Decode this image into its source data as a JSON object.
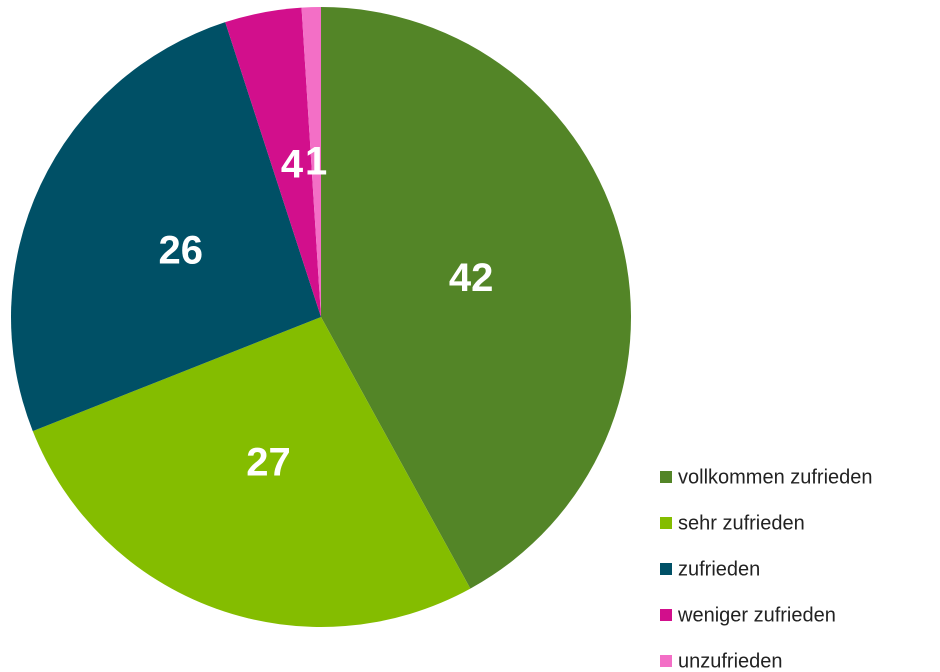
{
  "chart_data": {
    "type": "pie",
    "categories": [
      "vollkommen zufrieden",
      "sehr zufrieden",
      "zufrieden",
      "weniger zufrieden",
      "unzufrieden"
    ],
    "values": [
      42,
      27,
      26,
      4,
      1
    ],
    "colors": [
      "#538527",
      "#84bd00",
      "#005066",
      "#d20f8c",
      "#f36fc6"
    ]
  }
}
